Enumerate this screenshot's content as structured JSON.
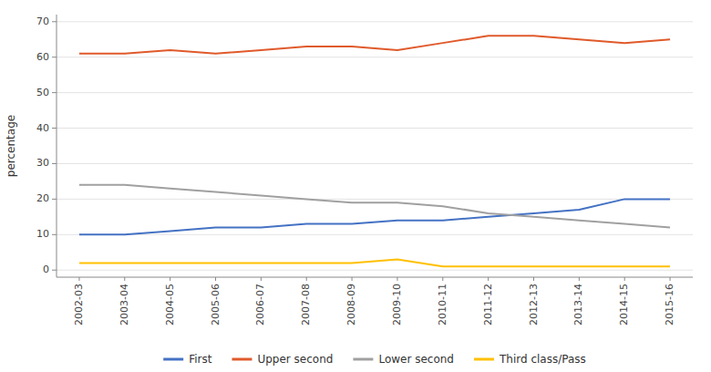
{
  "chart_data": {
    "type": "line",
    "y_label": "percentage",
    "categories": [
      "2002-03",
      "2003-04",
      "2004-05",
      "2005-06",
      "2006-07",
      "2007-08",
      "2008-09",
      "2009-10",
      "2010-11",
      "2011-12",
      "2012-13",
      "2013-14",
      "2014-15",
      "2015-16"
    ],
    "series": [
      {
        "name": "First",
        "color": "#4472c4",
        "values": [
          10,
          10,
          11,
          12,
          12,
          13,
          13,
          14,
          14,
          15,
          16,
          17,
          20,
          20
        ]
      },
      {
        "name": "Upper second",
        "color": "#e05a2b",
        "values": [
          61,
          61,
          62,
          61,
          62,
          63,
          63,
          62,
          64,
          66,
          66,
          65,
          64,
          65
        ]
      },
      {
        "name": "Lower second",
        "color": "#a0a0a0",
        "values": [
          24,
          24,
          23,
          22,
          21,
          20,
          19,
          19,
          18,
          16,
          15,
          14,
          13,
          12
        ]
      },
      {
        "name": "Third class/Pass",
        "color": "#ffc000",
        "values": [
          2,
          2,
          2,
          2,
          2,
          2,
          2,
          3,
          1,
          1,
          1,
          1,
          1,
          1
        ]
      }
    ],
    "ylim": [
      -2,
      72
    ],
    "yticks": [
      0,
      10,
      20,
      30,
      40,
      50,
      60,
      70
    ],
    "grid": true,
    "legend": "bottom"
  }
}
